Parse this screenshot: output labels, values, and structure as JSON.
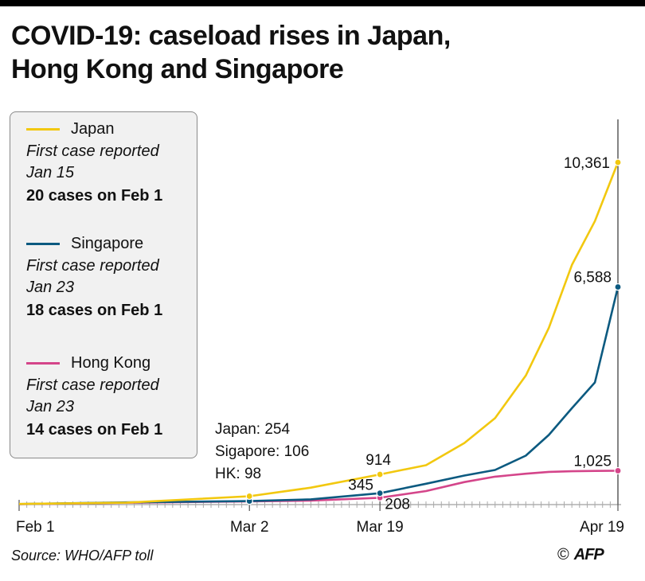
{
  "title_line1": "COVID-19: caseload rises in Japan,",
  "title_line2": "Hong Kong and Singapore",
  "legend": [
    {
      "name": "Japan",
      "note1": "First case reported",
      "note2": "Jan 15",
      "count": "20  cases on Feb 1",
      "color": "#f2c80f"
    },
    {
      "name": "Singapore",
      "note1": "First case reported",
      "note2": "Jan 23",
      "count": "18 cases on Feb 1",
      "color": "#0c5a80"
    },
    {
      "name": "Hong Kong",
      "note1": "First case reported",
      "note2": "Jan 23",
      "count": "14 cases on Feb 1",
      "color": "#d4458a"
    }
  ],
  "annotation_mar2": [
    "Japan: 254",
    "Sigapore: 106",
    "HK: 98"
  ],
  "source": "Source: WHO/AFP toll",
  "credit_symbol": "©",
  "credit_name": "AFP",
  "chart_data": {
    "type": "line",
    "xlabel": "",
    "ylabel": "",
    "x_ticks": [
      "Feb 1",
      "Mar 2",
      "Mar 19",
      "Apr 19"
    ],
    "x_domain": [
      "2020-02-01",
      "2020-04-19"
    ],
    "ylim": [
      0,
      11000
    ],
    "grid": false,
    "legend": "top-left",
    "point_labels": [
      {
        "series": "Japan",
        "x": "2020-03-19",
        "label": "914"
      },
      {
        "series": "Singapore",
        "x": "2020-03-19",
        "label": "345"
      },
      {
        "series": "Hong Kong",
        "x": "2020-03-19",
        "label": "208"
      },
      {
        "series": "Japan",
        "x": "2020-04-19",
        "label": "10,361"
      },
      {
        "series": "Singapore",
        "x": "2020-04-19",
        "label": "6,588"
      },
      {
        "series": "Hong Kong",
        "x": "2020-04-19",
        "label": "1,025"
      }
    ],
    "series": [
      {
        "name": "Japan",
        "color": "#f2c80f",
        "points": [
          [
            "2020-02-01",
            20
          ],
          [
            "2020-02-15",
            59
          ],
          [
            "2020-03-02",
            254
          ],
          [
            "2020-03-10",
            514
          ],
          [
            "2020-03-19",
            914
          ],
          [
            "2020-03-25",
            1193
          ],
          [
            "2020-03-30",
            1866
          ],
          [
            "2020-04-03",
            2617
          ],
          [
            "2020-04-07",
            3906
          ],
          [
            "2020-04-10",
            5347
          ],
          [
            "2020-04-13",
            7255
          ],
          [
            "2020-04-16",
            8582
          ],
          [
            "2020-04-19",
            10361
          ]
        ],
        "marked": [
          "2020-03-02",
          "2020-03-19",
          "2020-04-19"
        ]
      },
      {
        "name": "Singapore",
        "color": "#0c5a80",
        "points": [
          [
            "2020-02-01",
            18
          ],
          [
            "2020-02-15",
            67
          ],
          [
            "2020-03-02",
            106
          ],
          [
            "2020-03-10",
            160
          ],
          [
            "2020-03-19",
            345
          ],
          [
            "2020-03-25",
            631
          ],
          [
            "2020-03-30",
            879
          ],
          [
            "2020-04-03",
            1049
          ],
          [
            "2020-04-07",
            1481
          ],
          [
            "2020-04-10",
            2108
          ],
          [
            "2020-04-13",
            2918
          ],
          [
            "2020-04-16",
            3699
          ],
          [
            "2020-04-19",
            6588
          ]
        ],
        "marked": [
          "2020-03-02",
          "2020-03-19",
          "2020-04-19"
        ]
      },
      {
        "name": "Hong Kong",
        "color": "#d4458a",
        "points": [
          [
            "2020-02-01",
            14
          ],
          [
            "2020-02-15",
            56
          ],
          [
            "2020-03-02",
            98
          ],
          [
            "2020-03-10",
            120
          ],
          [
            "2020-03-19",
            208
          ],
          [
            "2020-03-25",
            410
          ],
          [
            "2020-03-30",
            682
          ],
          [
            "2020-04-03",
            845
          ],
          [
            "2020-04-07",
            936
          ],
          [
            "2020-04-10",
            990
          ],
          [
            "2020-04-13",
            1010
          ],
          [
            "2020-04-16",
            1020
          ],
          [
            "2020-04-19",
            1025
          ]
        ],
        "marked": [
          "2020-03-02",
          "2020-03-19",
          "2020-04-19"
        ]
      }
    ]
  }
}
